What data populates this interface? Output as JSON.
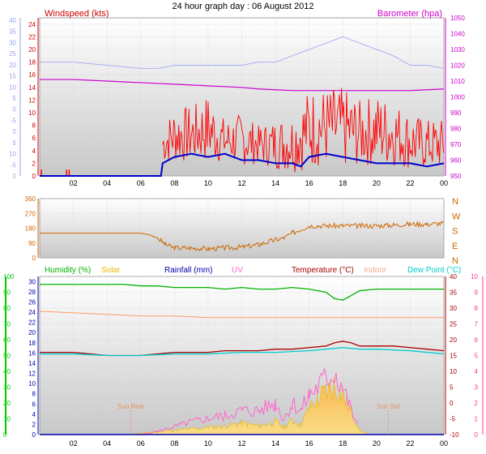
{
  "title": "24 hour graph day : 06 August 2012",
  "colors": {
    "windspeed": "#ff0000",
    "windspeed_label": "#cc0000",
    "gust_axis": "#9aa6e8",
    "barometer": "#cc00cc",
    "avg_wind": "#0000cc",
    "baro_gust_line": "#a8b0f0",
    "winddir": "#cc6600",
    "winddir_axis": "#cc6600",
    "humidity": "#00b000",
    "solar": "#e6b800",
    "solar_fill": "#ffd060",
    "rainfall": "#0000aa",
    "uv": "#ff66cc",
    "temperature": "#aa0000",
    "indoor": "#ff9966",
    "indoor_label": "#f0b090",
    "dewpoint": "#00cccc",
    "temp_axis": "#ff3399",
    "hum_axis": "#00cc00",
    "grid": "#d0d0d0",
    "panel_bg_top": "#ffffff",
    "panel_bg_bottom": "#cccccc",
    "axis_line": "#666666"
  },
  "x_ticks": [
    "02",
    "04",
    "06",
    "08",
    "10",
    "12",
    "14",
    "16",
    "18",
    "20",
    "22",
    "00"
  ],
  "chart_data": [
    {
      "type": "line",
      "name": "wind-baro-panel",
      "title": "24 hour graph day : 06 August 2012",
      "left_axis_label": "Windspeed (kts)",
      "right_axis_label": "Barometer (hpa)",
      "x_unit": "hour",
      "x_range": [
        0,
        24
      ],
      "windspeed_ticks": [
        "0",
        "2",
        "4",
        "6",
        "8",
        "10",
        "12",
        "14",
        "16",
        "18",
        "20",
        "22",
        "24"
      ],
      "outer_left_ticks": [
        "0",
        "5",
        "10",
        "15",
        "20",
        "25",
        "30",
        "35",
        "40",
        "-5",
        "0",
        "5",
        "10",
        "15",
        "-5"
      ],
      "outer_left_labels_top_to_bottom": [
        "40",
        "35",
        "30",
        "25",
        "20",
        "15",
        "10",
        "5",
        "0",
        "-5",
        "0",
        "5",
        "10",
        "-5",
        "0"
      ],
      "barometer_ticks": [
        "950",
        "960",
        "970",
        "980",
        "990",
        "1000",
        "1010",
        "1020",
        "1030",
        "1040",
        "1050"
      ],
      "windspeed_range": [
        0,
        25
      ],
      "barometer_range": [
        950,
        1050
      ],
      "barometer_series": {
        "x": [
          0,
          1,
          2,
          3,
          4,
          5,
          6,
          7,
          8,
          9,
          10,
          11,
          12,
          13,
          14,
          15,
          16,
          17,
          18,
          19,
          20,
          21,
          22,
          23,
          24
        ],
        "y": [
          1011,
          1011,
          1011,
          1010.5,
          1010,
          1009.5,
          1009,
          1008.5,
          1008,
          1007.5,
          1007,
          1006.5,
          1006,
          1005,
          1004.5,
          1004,
          1004,
          1004,
          1004,
          1004,
          1004,
          1004,
          1004,
          1004.5,
          1005
        ]
      },
      "gust_series": {
        "x": [
          0,
          2,
          4,
          6,
          7,
          8,
          10,
          12,
          13,
          14,
          15,
          16,
          17,
          18,
          19,
          20,
          21,
          22,
          23,
          24
        ],
        "y": [
          18,
          18,
          17.5,
          17,
          17,
          17.5,
          17.5,
          17.5,
          18,
          18,
          19,
          20,
          21,
          22,
          21,
          20,
          19,
          17.5,
          17.5,
          17
        ]
      },
      "avg_wind_series": {
        "x": [
          0,
          7.2,
          7.3,
          8,
          9,
          10,
          11,
          12,
          13,
          14,
          15,
          15.5,
          16,
          17,
          18,
          19,
          20,
          21,
          22,
          23,
          24
        ],
        "y": [
          0,
          0,
          2,
          3,
          3.5,
          3,
          3.5,
          2.5,
          2.5,
          2,
          2,
          1.5,
          3,
          3.5,
          3,
          2.5,
          2,
          2,
          2,
          1.5,
          2
        ]
      },
      "wind_range_series": {
        "x": [
          7.3,
          8,
          9,
          10,
          11,
          12,
          13,
          14,
          15,
          16,
          17,
          18,
          19,
          20,
          21,
          22,
          23,
          24
        ],
        "min": [
          2,
          2,
          2,
          2,
          2,
          1.5,
          2,
          1,
          0.5,
          1,
          1.5,
          1,
          1.5,
          1.5,
          1.5,
          1,
          1,
          1
        ],
        "max": [
          8,
          11,
          11,
          13,
          9,
          10,
          8,
          9,
          10,
          14,
          14,
          14,
          12,
          13,
          12,
          10,
          9,
          9
        ]
      }
    },
    {
      "type": "line",
      "name": "wind-direction-panel",
      "x_range": [
        0,
        24
      ],
      "left_ticks": [
        "0",
        "90",
        "180",
        "270",
        "360"
      ],
      "right_labels": [
        "N",
        "W",
        "S",
        "E",
        "N"
      ],
      "y_range": [
        0,
        360
      ],
      "series": {
        "x": [
          0,
          6,
          6.5,
          7,
          7.5,
          8,
          9,
          10,
          11,
          12,
          13,
          14,
          14.5,
          15,
          16,
          17,
          18,
          19,
          20,
          21,
          22,
          23,
          24
        ],
        "y": [
          150,
          150,
          140,
          120,
          80,
          60,
          60,
          55,
          60,
          65,
          80,
          110,
          120,
          150,
          195,
          195,
          195,
          195,
          195,
          200,
          205,
          205,
          210
        ]
      }
    },
    {
      "type": "line",
      "name": "multi-sensor-panel",
      "legend": [
        "Humidity (%)",
        "Solar",
        "Rainfall (mm)",
        "UV",
        "Temperature (°C)",
        "Indoor",
        "Dew Point (°C)"
      ],
      "humidity_ticks": [
        "0",
        "10",
        "20",
        "30",
        "40",
        "50",
        "60",
        "70",
        "80",
        "90",
        "100"
      ],
      "rain_ticks": [
        "0",
        "2",
        "4",
        "6",
        "8",
        "10",
        "12",
        "14",
        "16",
        "18",
        "20",
        "22",
        "24",
        "26",
        "28",
        "30"
      ],
      "temp_ticks": [
        "-10",
        "-5",
        "0",
        "5",
        "10",
        "15",
        "20",
        "25",
        "30",
        "35",
        "40"
      ],
      "uv_ticks": [
        "0",
        "1",
        "2",
        "3",
        "4",
        "5",
        "6",
        "7",
        "8",
        "9",
        "10"
      ],
      "annotations": [
        "Sun Rise",
        "Sun Set"
      ],
      "x_range": [
        0,
        24
      ],
      "humidity_range": [
        0,
        100
      ],
      "temp_range": [
        -10,
        40
      ],
      "humidity_series": {
        "x": [
          0,
          1,
          2,
          3,
          4,
          5,
          6,
          7,
          8,
          9,
          10,
          11,
          12,
          13,
          14,
          15,
          16,
          17,
          17.5,
          18,
          18.5,
          19,
          20,
          21,
          22,
          23,
          24
        ],
        "y": [
          95,
          95,
          95,
          95,
          95,
          95,
          94,
          94,
          93,
          93,
          93,
          92,
          93,
          92,
          92,
          93,
          92,
          90,
          86,
          85,
          88,
          91,
          92,
          92,
          92,
          92,
          92
        ]
      },
      "temperature_series": {
        "x": [
          0,
          1,
          2,
          3,
          4,
          5,
          6,
          7,
          8,
          9,
          10,
          11,
          12,
          13,
          14,
          15,
          16,
          17,
          17.5,
          18,
          18.5,
          19,
          20,
          21,
          22,
          23,
          24
        ],
        "y": [
          16,
          16,
          16,
          15.5,
          15,
          15,
          15,
          15.5,
          16,
          16,
          16,
          16.5,
          16.5,
          16.5,
          17,
          17,
          17.5,
          18,
          19,
          19.5,
          19,
          18,
          18,
          18,
          17.5,
          17,
          16.5
        ]
      },
      "dewpoint_series": {
        "x": [
          0,
          2,
          4,
          6,
          8,
          10,
          12,
          14,
          16,
          17,
          18,
          19,
          20,
          22,
          24
        ],
        "y": [
          15.5,
          15.5,
          15,
          15,
          15.5,
          15.5,
          16,
          16,
          16.5,
          17,
          17.5,
          17,
          17,
          16.5,
          15.5
        ]
      },
      "indoor_series": {
        "x": [
          0,
          2,
          4,
          6,
          8,
          10,
          12,
          14,
          16,
          18,
          20,
          22,
          24
        ],
        "y": [
          29,
          28.5,
          28,
          27.5,
          27.5,
          27,
          27,
          27,
          27,
          27,
          27,
          27,
          27
        ]
      },
      "solar_series": {
        "x": [
          5.5,
          6,
          7,
          8,
          9,
          10,
          11,
          12,
          13,
          14,
          14.5,
          15,
          15.5,
          16,
          16.5,
          17,
          17.5,
          18,
          18.5,
          19,
          19.5
        ],
        "y": [
          0,
          1,
          2,
          3,
          4,
          5,
          6,
          8,
          6,
          9,
          5,
          10,
          7,
          18,
          25,
          30,
          35,
          28,
          16,
          3,
          0
        ]
      },
      "uv_series": {
        "x": [
          6,
          7,
          8,
          9,
          10,
          11,
          12,
          13,
          14,
          14.5,
          15,
          15.5,
          16,
          16.5,
          17,
          17.5,
          18,
          18.5,
          19
        ],
        "y": [
          0,
          0.2,
          0.5,
          0.8,
          1,
          1.2,
          1.5,
          1.5,
          2,
          1,
          2,
          1.5,
          2.5,
          3,
          3.5,
          4,
          3,
          1.5,
          0.3
        ]
      },
      "rainfall_series": {
        "x": [
          0,
          24
        ],
        "y": [
          0,
          0
        ]
      }
    }
  ]
}
